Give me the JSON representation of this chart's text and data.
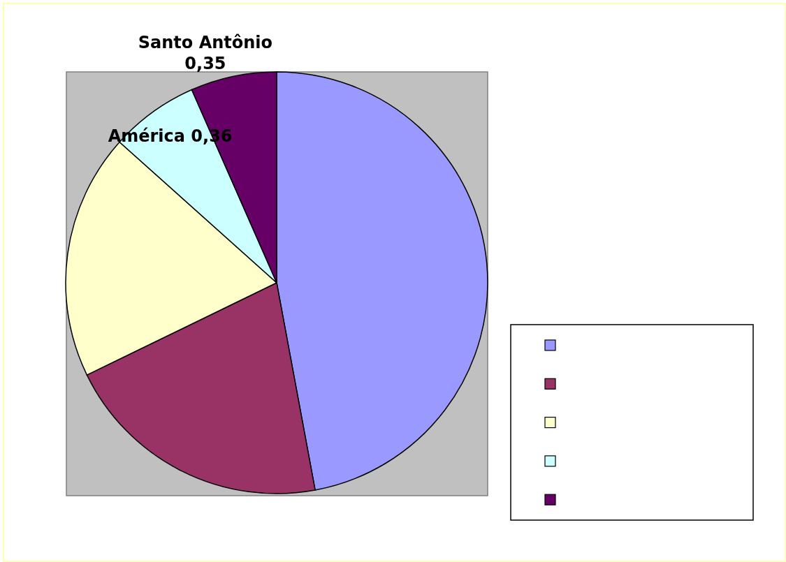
{
  "chart_data": {
    "type": "pie",
    "categories": [
      null,
      null,
      null,
      "América",
      "Santo Antônio"
    ],
    "values": [
      2.5,
      1.1,
      1.0,
      0.36,
      0.35
    ],
    "colors": [
      "#9999ff",
      "#993366",
      "#ffffcc",
      "#ccffff",
      "#660066"
    ],
    "value_labels": [
      null,
      null,
      null,
      "0,36",
      "0,35"
    ]
  }
}
